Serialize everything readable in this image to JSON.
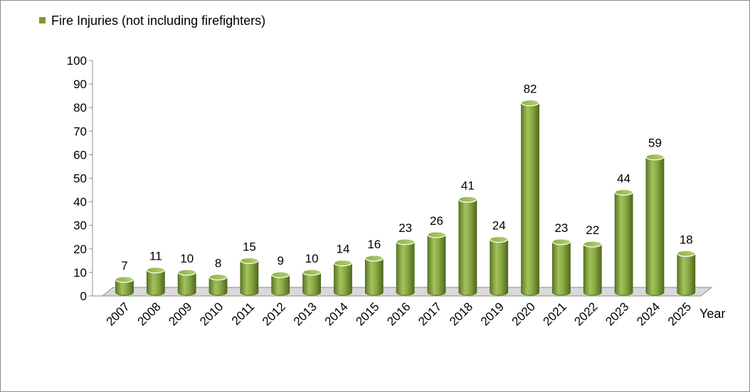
{
  "chart_data": {
    "type": "bar",
    "legend": {
      "label": "Fire Injuries (not including firefighters)",
      "color": "#7a9a3a",
      "position": "top-left"
    },
    "xlabel": "Year",
    "ylabel": "",
    "ylim": [
      0,
      100
    ],
    "yticks": [
      0,
      10,
      20,
      30,
      40,
      50,
      60,
      70,
      80,
      90,
      100
    ],
    "categories": [
      "2007",
      "2008",
      "2009",
      "2010",
      "2011",
      "2012",
      "2013",
      "2014",
      "2015",
      "2016",
      "2017",
      "2018",
      "2019",
      "2020",
      "2021",
      "2022",
      "2023",
      "2024",
      "2025"
    ],
    "series": [
      {
        "name": "Fire Injuries (not including firefighters)",
        "values": [
          7,
          11,
          10,
          8,
          15,
          9,
          10,
          14,
          16,
          23,
          26,
          41,
          24,
          82,
          23,
          22,
          44,
          59,
          18
        ]
      }
    ],
    "data_labels": true,
    "grid": false,
    "style": "3d-cylinder"
  }
}
